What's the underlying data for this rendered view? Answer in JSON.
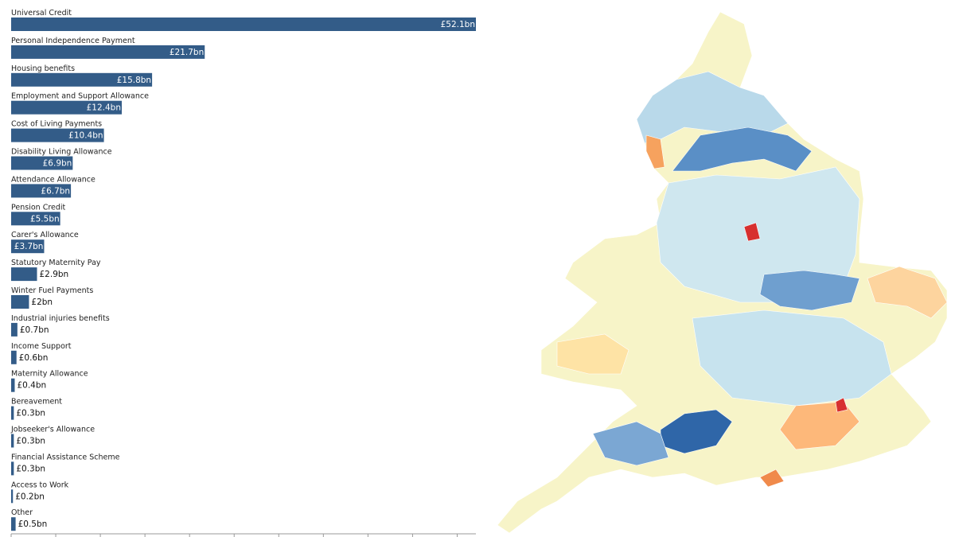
{
  "chart_data": {
    "type": "hbar",
    "categories": [
      "Universal Credit",
      "Personal Independence Payment",
      "Housing benefits",
      "Employment and Support Allowance",
      "Cost of Living Payments",
      "Disability Living Allowance",
      "Attendance Allowance",
      "Pension Credit",
      "Carer's Allowance",
      "Statutory Maternity Pay",
      "Winter Fuel Payments",
      "Industrial injuries benefits",
      "Income Support",
      "Maternity Allowance",
      "Bereavement",
      "Jobseeker's Allowance",
      "Financial Assistance Scheme",
      "Access to Work",
      "Other"
    ],
    "values": [
      52.1,
      21.7,
      15.8,
      12.4,
      10.4,
      6.9,
      6.7,
      5.5,
      3.7,
      2.9,
      2,
      0.7,
      0.6,
      0.4,
      0.3,
      0.3,
      0.3,
      0.2,
      0.5
    ],
    "value_labels": [
      "£52.1bn",
      "£21.7bn",
      "£15.8bn",
      "£12.4bn",
      "£10.4bn",
      "£6.9bn",
      "£6.7bn",
      "£5.5bn",
      "£3.7bn",
      "£2.9bn",
      "£2bn",
      "£0.7bn",
      "£0.6bn",
      "£0.4bn",
      "£0.3bn",
      "£0.3bn",
      "£0.3bn",
      "£0.2bn",
      "£0.5bn"
    ],
    "color": "#335c88",
    "xlim": [
      0,
      52.1
    ],
    "xticks": [
      0,
      5,
      10,
      15,
      20,
      25,
      30,
      35,
      40,
      45,
      50
    ]
  }
}
